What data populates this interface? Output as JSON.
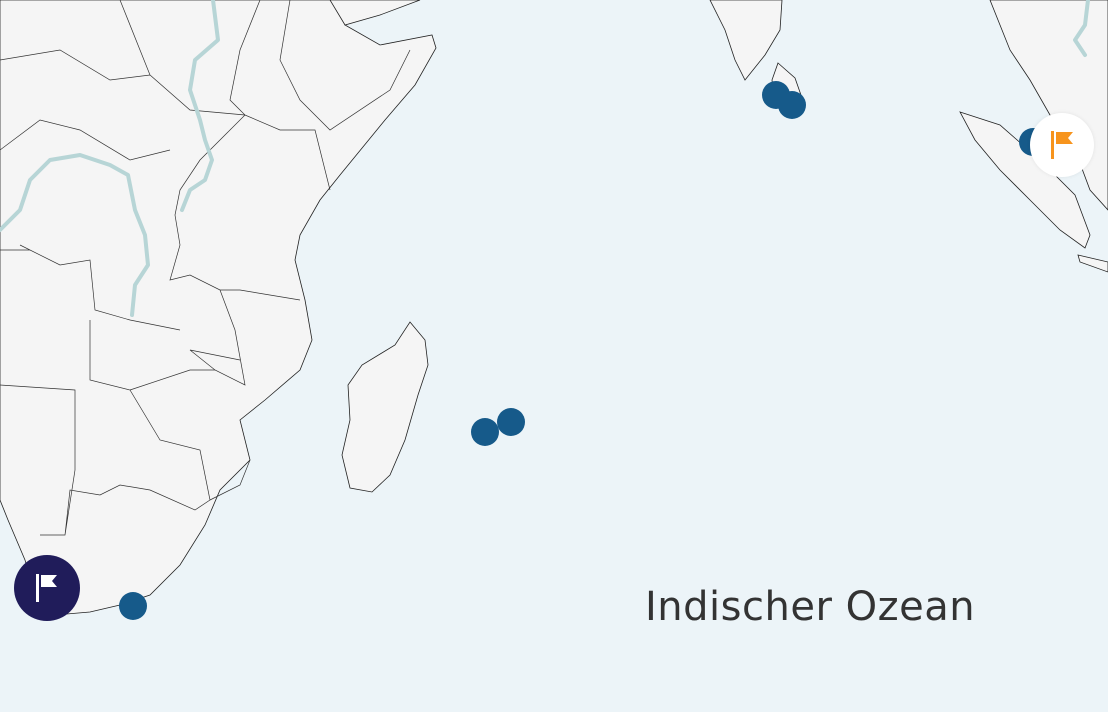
{
  "map": {
    "ocean_label": "Indischer Ozean",
    "colors": {
      "ocean": "#ecf4f8",
      "land": "#f5f5f5",
      "marker": "#165a8a",
      "river": "#b7d5d6",
      "flag_dark_bg": "#201c5a",
      "flag_light_bg": "#ffffff",
      "flag_light_icon": "#f7941d"
    },
    "markers": [
      {
        "name": "marker-sri-lanka-1"
      },
      {
        "name": "marker-sri-lanka-2"
      },
      {
        "name": "marker-mauritius"
      },
      {
        "name": "marker-reunion"
      },
      {
        "name": "marker-south-africa"
      },
      {
        "name": "marker-malaysia"
      }
    ],
    "controls": [
      {
        "name": "flag-button-dark",
        "icon": "flag-icon"
      },
      {
        "name": "flag-button-highlighted",
        "icon": "flag-icon"
      }
    ]
  }
}
